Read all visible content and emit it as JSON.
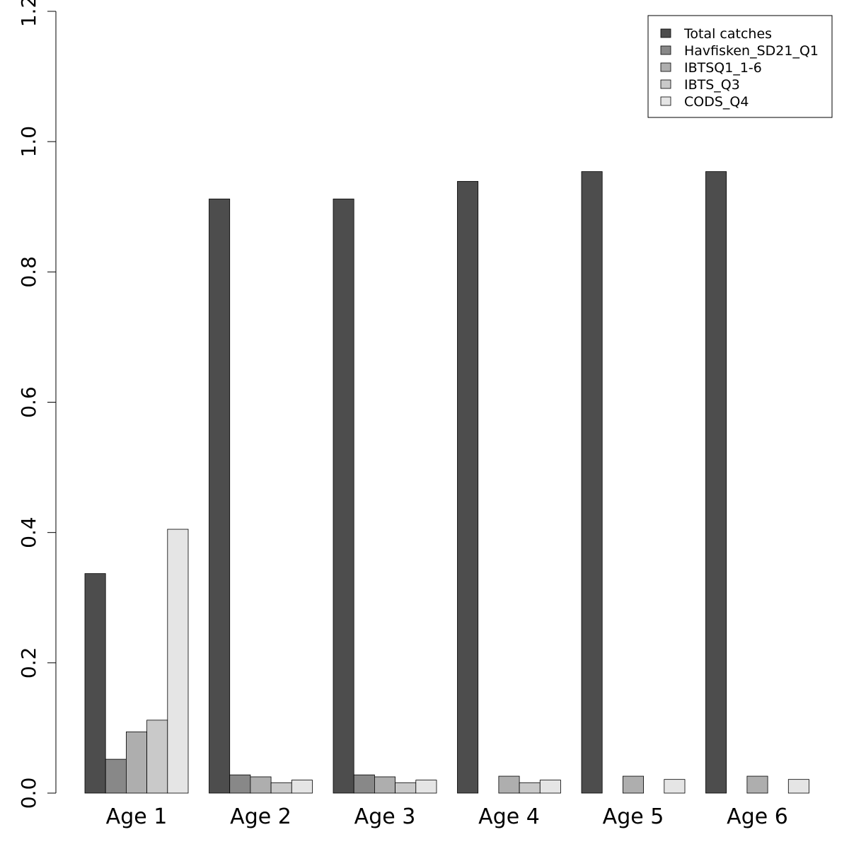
{
  "chart_data": {
    "type": "bar",
    "categories": [
      "Age 1",
      "Age 2",
      "Age 3",
      "Age 4",
      "Age 5",
      "Age 6"
    ],
    "series": [
      {
        "name": "Total catches",
        "color": "#4d4d4d",
        "values": [
          0.337,
          0.912,
          0.912,
          0.939,
          0.954,
          0.954
        ]
      },
      {
        "name": "Havfisken_SD21_Q1",
        "color": "#888888",
        "values": [
          0.052,
          0.028,
          0.028,
          0.0,
          0.0,
          0.0
        ]
      },
      {
        "name": "IBTSQ1_1-6",
        "color": "#aeaeae",
        "values": [
          0.094,
          0.025,
          0.025,
          0.026,
          0.026,
          0.026
        ]
      },
      {
        "name": "IBTS_Q3",
        "color": "#c9c9c9",
        "values": [
          0.112,
          0.016,
          0.016,
          0.016,
          0.0,
          0.0
        ]
      },
      {
        "name": "CODS_Q4",
        "color": "#e5e5e5",
        "values": [
          0.405,
          0.02,
          0.02,
          0.02,
          0.021,
          0.021
        ]
      }
    ],
    "ylim": [
      0,
      1.2
    ],
    "yticks": [
      "0.0",
      "0.2",
      "0.4",
      "0.6",
      "0.8",
      "1.0",
      "1.2"
    ],
    "legend_position": "top-right",
    "grid": false
  }
}
